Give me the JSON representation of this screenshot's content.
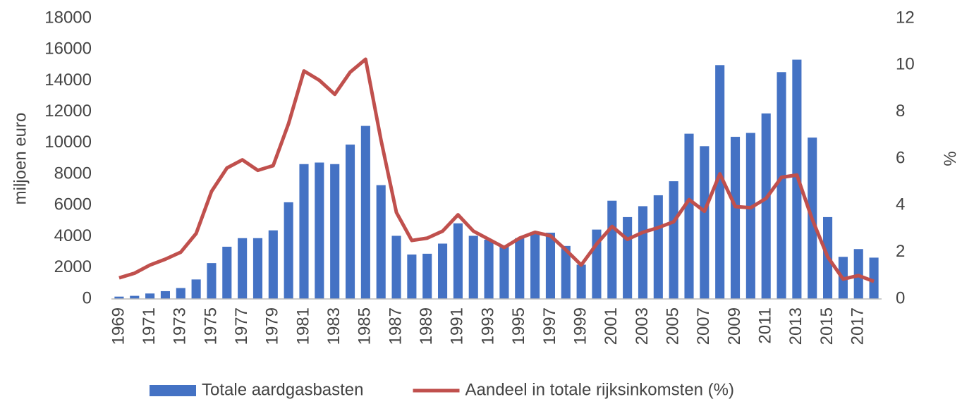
{
  "chart_data": {
    "type": "bar",
    "ylabel": "miljoen euro",
    "y2label": "%",
    "categories": [
      "1969",
      null,
      "1971",
      null,
      "1973",
      null,
      "1975",
      null,
      "1977",
      null,
      "1979",
      null,
      "1981",
      null,
      "1983",
      null,
      "1985",
      null,
      "1987",
      null,
      "1989",
      null,
      "1991",
      null,
      "1993",
      null,
      "1995",
      null,
      "1997",
      null,
      "1999",
      null,
      "2001",
      null,
      "2003",
      null,
      "2005",
      null,
      "2007",
      null,
      "2009",
      null,
      "2011",
      null,
      "2013",
      null,
      "2015",
      null,
      "2017",
      null
    ],
    "series": [
      {
        "name": "Totale aardgasbasten",
        "type": "bar",
        "color": "#4472c4",
        "values": [
          150,
          200,
          350,
          500,
          700,
          1250,
          2300,
          3350,
          3900,
          3900,
          4400,
          6200,
          8650,
          8750,
          8650,
          9900,
          11100,
          7300,
          4050,
          2850,
          2900,
          3550,
          4850,
          4050,
          3800,
          3400,
          3900,
          4300,
          4250,
          3400,
          2200,
          4450,
          6300,
          5250,
          5950,
          6650,
          7550,
          10600,
          9800,
          15000,
          10400,
          10650,
          11900,
          14550,
          15350,
          10350,
          5250,
          2700,
          3200,
          2650
        ]
      },
      {
        "name": "Aandeel in totale rijksinkomsten (%)",
        "type": "line",
        "axis": "y2",
        "color": "#c0504d",
        "values": [
          0.9,
          1.1,
          1.45,
          1.7,
          2.0,
          2.8,
          4.6,
          5.6,
          5.95,
          5.5,
          5.7,
          7.5,
          9.75,
          9.35,
          8.75,
          9.7,
          10.25,
          6.8,
          3.7,
          2.5,
          2.6,
          2.9,
          3.6,
          2.9,
          2.55,
          2.2,
          2.6,
          2.85,
          2.7,
          2.1,
          1.45,
          2.35,
          3.1,
          2.55,
          2.85,
          3.05,
          3.3,
          4.25,
          3.75,
          5.35,
          3.95,
          3.9,
          4.3,
          5.2,
          5.3,
          3.4,
          1.8,
          0.85,
          1.0,
          0.75
        ]
      }
    ],
    "ylim": [
      0,
      18000
    ],
    "yticks": [
      0,
      2000,
      4000,
      6000,
      8000,
      10000,
      12000,
      14000,
      16000,
      18000
    ],
    "y2lim": [
      0,
      12
    ],
    "y2ticks": [
      0,
      2,
      4,
      6,
      8,
      10,
      12
    ],
    "grid": false,
    "legend": "bottom"
  }
}
